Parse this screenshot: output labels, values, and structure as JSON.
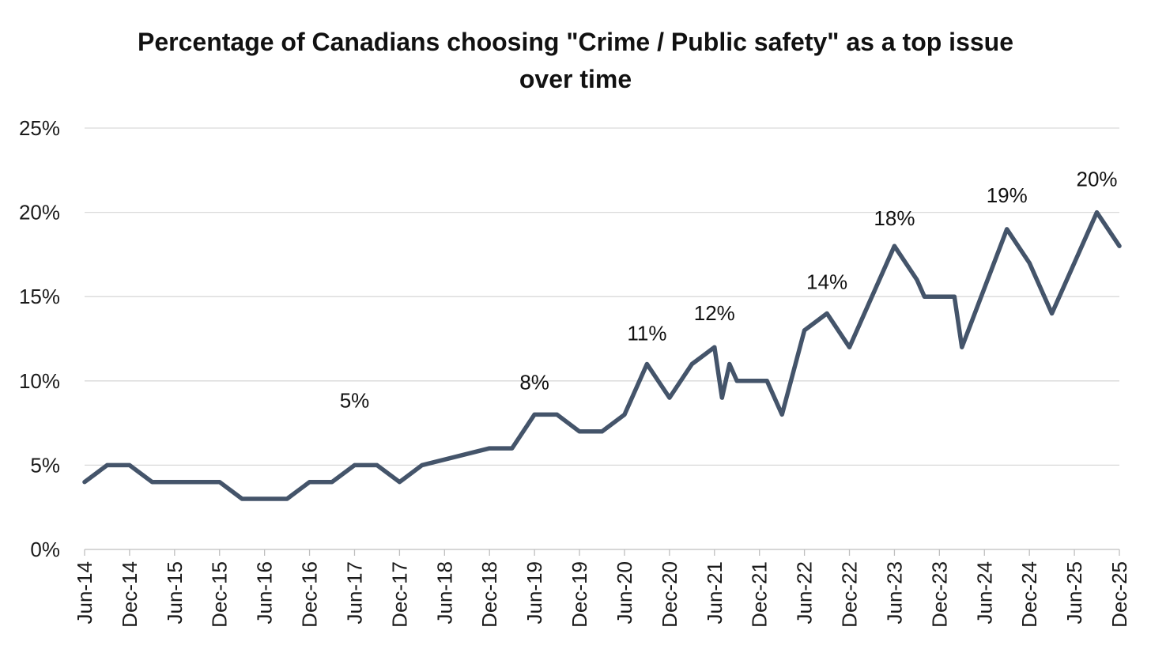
{
  "title": {
    "text": "Percentage of Canadians choosing \"Crime / Public safety\" as a top issue over time",
    "lines": [
      "Percentage of Canadians choosing \"Crime / Public safety\" as a top issue",
      "over time"
    ]
  },
  "colors": {
    "background": "#ffffff",
    "series_line": "#44546A",
    "gridline": "#d9d9d9",
    "axis": "#bfbfbf",
    "title_text": "#111111",
    "label_text": "#1a1a1a"
  },
  "chart_data": {
    "type": "line",
    "title": "Percentage of Canadians choosing \"Crime / Public safety\" as a top issue over time",
    "xlabel": "",
    "ylabel": "",
    "legend": "none",
    "grid": "horizontal",
    "x_axis": {
      "unit": "months_since_Jun_2014",
      "range": [
        0,
        138
      ],
      "tick_step_months": 6,
      "tick_labels": [
        "Jun-14",
        "Dec-14",
        "Jun-15",
        "Dec-15",
        "Jun-16",
        "Dec-16",
        "Jun-17",
        "Dec-17",
        "Jun-18",
        "Dec-18",
        "Jun-19",
        "Dec-19",
        "Jun-20",
        "Dec-20",
        "Jun-21",
        "Dec-21",
        "Jun-22",
        "Dec-22",
        "Jun-23",
        "Dec-23",
        "Jun-24",
        "Dec-24",
        "Jun-25",
        "Dec-25"
      ]
    },
    "y_axis": {
      "min": 0,
      "max": 25,
      "step": 5,
      "tick_labels": [
        "0%",
        "5%",
        "10%",
        "15%",
        "20%",
        "25%"
      ]
    },
    "series": [
      {
        "name": "Crime / Public safety",
        "color": "#44546A",
        "points": [
          {
            "date": "Jun-14",
            "m": 0,
            "value": 4
          },
          {
            "date": "Sep-14",
            "m": 3,
            "value": 5
          },
          {
            "date": "Dec-14",
            "m": 6,
            "value": 5
          },
          {
            "date": "Mar-15",
            "m": 9,
            "value": 4
          },
          {
            "date": "Dec-15",
            "m": 18,
            "value": 4
          },
          {
            "date": "Mar-16",
            "m": 21,
            "value": 3
          },
          {
            "date": "Sep-16",
            "m": 27,
            "value": 3
          },
          {
            "date": "Dec-16",
            "m": 30,
            "value": 4
          },
          {
            "date": "Mar-17",
            "m": 33,
            "value": 4
          },
          {
            "date": "Jun-17",
            "m": 36,
            "value": 5
          },
          {
            "date": "Sep-17",
            "m": 39,
            "value": 5
          },
          {
            "date": "Dec-17",
            "m": 42,
            "value": 4
          },
          {
            "date": "Mar-18",
            "m": 45,
            "value": 5
          },
          {
            "date": "Dec-18",
            "m": 54,
            "value": 6
          },
          {
            "date": "Mar-19",
            "m": 57,
            "value": 6
          },
          {
            "date": "Jun-19",
            "m": 60,
            "value": 8
          },
          {
            "date": "Sep-19",
            "m": 63,
            "value": 8
          },
          {
            "date": "Dec-19",
            "m": 66,
            "value": 7
          },
          {
            "date": "Mar-20",
            "m": 69,
            "value": 7
          },
          {
            "date": "Jun-20",
            "m": 72,
            "value": 8
          },
          {
            "date": "Sep-20",
            "m": 75,
            "value": 11
          },
          {
            "date": "Dec-20",
            "m": 78,
            "value": 9
          },
          {
            "date": "Mar-21",
            "m": 81,
            "value": 11
          },
          {
            "date": "Jun-21",
            "m": 84,
            "value": 12
          },
          {
            "date": "Jul-21",
            "m": 85,
            "value": 9
          },
          {
            "date": "Aug-21",
            "m": 86,
            "value": 11
          },
          {
            "date": "Sep-21",
            "m": 87,
            "value": 10
          },
          {
            "date": "Jan-22",
            "m": 91,
            "value": 10
          },
          {
            "date": "Mar-22",
            "m": 93,
            "value": 8
          },
          {
            "date": "Jun-22",
            "m": 96,
            "value": 13
          },
          {
            "date": "Sep-22",
            "m": 99,
            "value": 14
          },
          {
            "date": "Dec-22",
            "m": 102,
            "value": 12
          },
          {
            "date": "Jun-23",
            "m": 108,
            "value": 18
          },
          {
            "date": "Sep-23",
            "m": 111,
            "value": 16
          },
          {
            "date": "Oct-23",
            "m": 112,
            "value": 15
          },
          {
            "date": "Feb-24",
            "m": 116,
            "value": 15
          },
          {
            "date": "Mar-24",
            "m": 117,
            "value": 12
          },
          {
            "date": "Sep-24",
            "m": 123,
            "value": 19
          },
          {
            "date": "Dec-24",
            "m": 126,
            "value": 17
          },
          {
            "date": "Mar-25",
            "m": 129,
            "value": 14
          },
          {
            "date": "Sep-25",
            "m": 135,
            "value": 20
          },
          {
            "date": "Dec-25",
            "m": 138,
            "value": 18
          }
        ]
      }
    ],
    "data_labels": [
      {
        "text": "5%",
        "anchor_date": "Jun-17",
        "m": 36,
        "value": 5,
        "dy": -82
      },
      {
        "text": "8%",
        "anchor_date": "Jun-19",
        "m": 60,
        "value": 8,
        "dy": -41
      },
      {
        "text": "11%",
        "anchor_date": "Sep-20",
        "m": 75,
        "value": 11,
        "dy": -39
      },
      {
        "text": "12%",
        "anchor_date": "Jun-21",
        "m": 84,
        "value": 12,
        "dy": -43
      },
      {
        "text": "14%",
        "anchor_date": "Sep-22",
        "m": 99,
        "value": 14,
        "dy": -40
      },
      {
        "text": "18%",
        "anchor_date": "Jun-23",
        "m": 108,
        "value": 18,
        "dy": -35
      },
      {
        "text": "19%",
        "anchor_date": "Sep-24",
        "m": 123,
        "value": 19,
        "dy": -43
      },
      {
        "text": "20%",
        "anchor_date": "Sep-25",
        "m": 135,
        "value": 20,
        "dy": -42
      }
    ]
  }
}
